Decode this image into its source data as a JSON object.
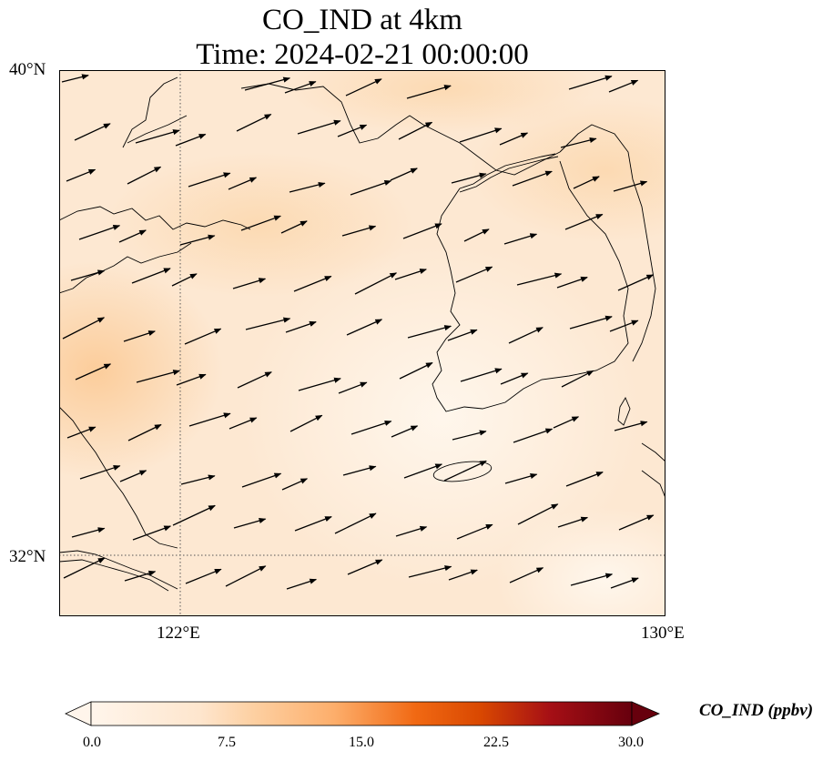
{
  "title": {
    "line1": "CO_IND at 4km",
    "line2": "Time: 2024-02-21 00:00:00"
  },
  "map": {
    "lat_labels": [
      "40°N",
      "32°N"
    ],
    "lon_labels": [
      "122°E",
      "130°E"
    ],
    "lat_range": [
      31,
      40
    ],
    "lon_range": [
      120,
      130
    ],
    "gridlines": {
      "lon": [
        122
      ],
      "lat": [
        32
      ],
      "style": "dotted"
    },
    "field": "CO_IND concentration (shaded)",
    "vectors": "wind arrows, predominantly west-southwesterly"
  },
  "colorbar": {
    "label": "CO_IND (ppbv)",
    "ticks": [
      "0.0",
      "7.5",
      "15.0",
      "22.5",
      "30.0"
    ],
    "range": [
      0,
      30
    ],
    "extend": "both",
    "colormap": [
      "#fff5eb",
      "#fdd3a8",
      "#fdae6b",
      "#f16913",
      "#d94801",
      "#a50f15",
      "#67000d"
    ]
  }
}
